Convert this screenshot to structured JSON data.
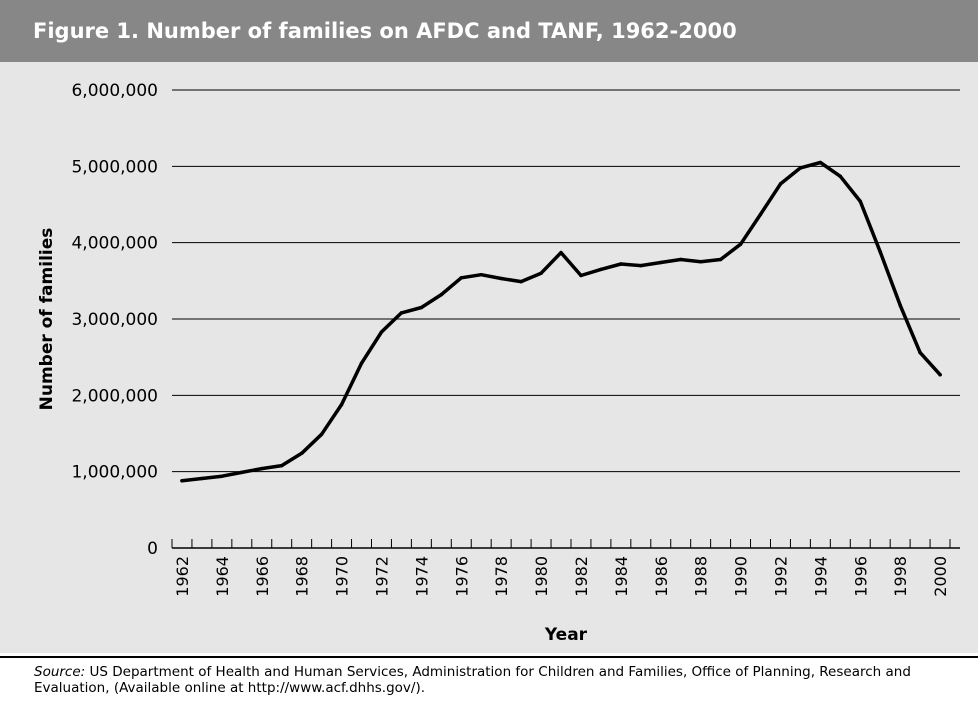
{
  "figure": {
    "title": "Figure 1.   Number of families on AFDC and TANF, 1962-2000"
  },
  "source": {
    "label": "Source:",
    "text": " US Department of Health and Human Services, Administration for Children and Families, Office of Planning, Research and Evaluation, (Available online at http://www.acf.dhhs.gov/)."
  },
  "colors": {
    "title_bar": "#878787",
    "plot_background": "#e6e6e6",
    "line": "#000000",
    "gridline": "#000000"
  },
  "chart_data": {
    "type": "line",
    "title": "Number of families on AFDC and TANF, 1962-2000",
    "xlabel": "Year",
    "ylabel": "Number of families",
    "ylim": [
      0,
      6000000
    ],
    "y_ticks": [
      0,
      1000000,
      2000000,
      3000000,
      4000000,
      5000000,
      6000000
    ],
    "y_tick_labels": [
      "0",
      "1,000,000",
      "2,000,000",
      "3,000,000",
      "4,000,000",
      "5,000,000",
      "6,000,000"
    ],
    "x_tick_labels": [
      "1962",
      "1964",
      "1966",
      "1968",
      "1970",
      "1972",
      "1974",
      "1976",
      "1978",
      "1980",
      "1982",
      "1984",
      "1986",
      "1988",
      "1990",
      "1992",
      "1994",
      "1996",
      "1998",
      "2000"
    ],
    "grid": true,
    "legend": "none",
    "series": [
      {
        "x": [
          1962,
          1963,
          1964,
          1965,
          1966,
          1967,
          1968,
          1969,
          1970,
          1971,
          1972,
          1973,
          1974,
          1975,
          1976,
          1977,
          1978,
          1979,
          1980,
          1981,
          1982,
          1983,
          1984,
          1985,
          1986,
          1987,
          1988,
          1989,
          1990,
          1991,
          1992,
          1993,
          1994,
          1995,
          1996,
          1997,
          1998,
          1999,
          2000
        ],
        "values": [
          880000,
          910000,
          940000,
          990000,
          1040000,
          1080000,
          1240000,
          1490000,
          1880000,
          2420000,
          2830000,
          3080000,
          3150000,
          3320000,
          3540000,
          3580000,
          3530000,
          3490000,
          3600000,
          3870000,
          3570000,
          3650000,
          3720000,
          3700000,
          3740000,
          3780000,
          3750000,
          3780000,
          3980000,
          4370000,
          4770000,
          4980000,
          5050000,
          4870000,
          4540000,
          3880000,
          3180000,
          2560000,
          2270000
        ]
      }
    ]
  }
}
